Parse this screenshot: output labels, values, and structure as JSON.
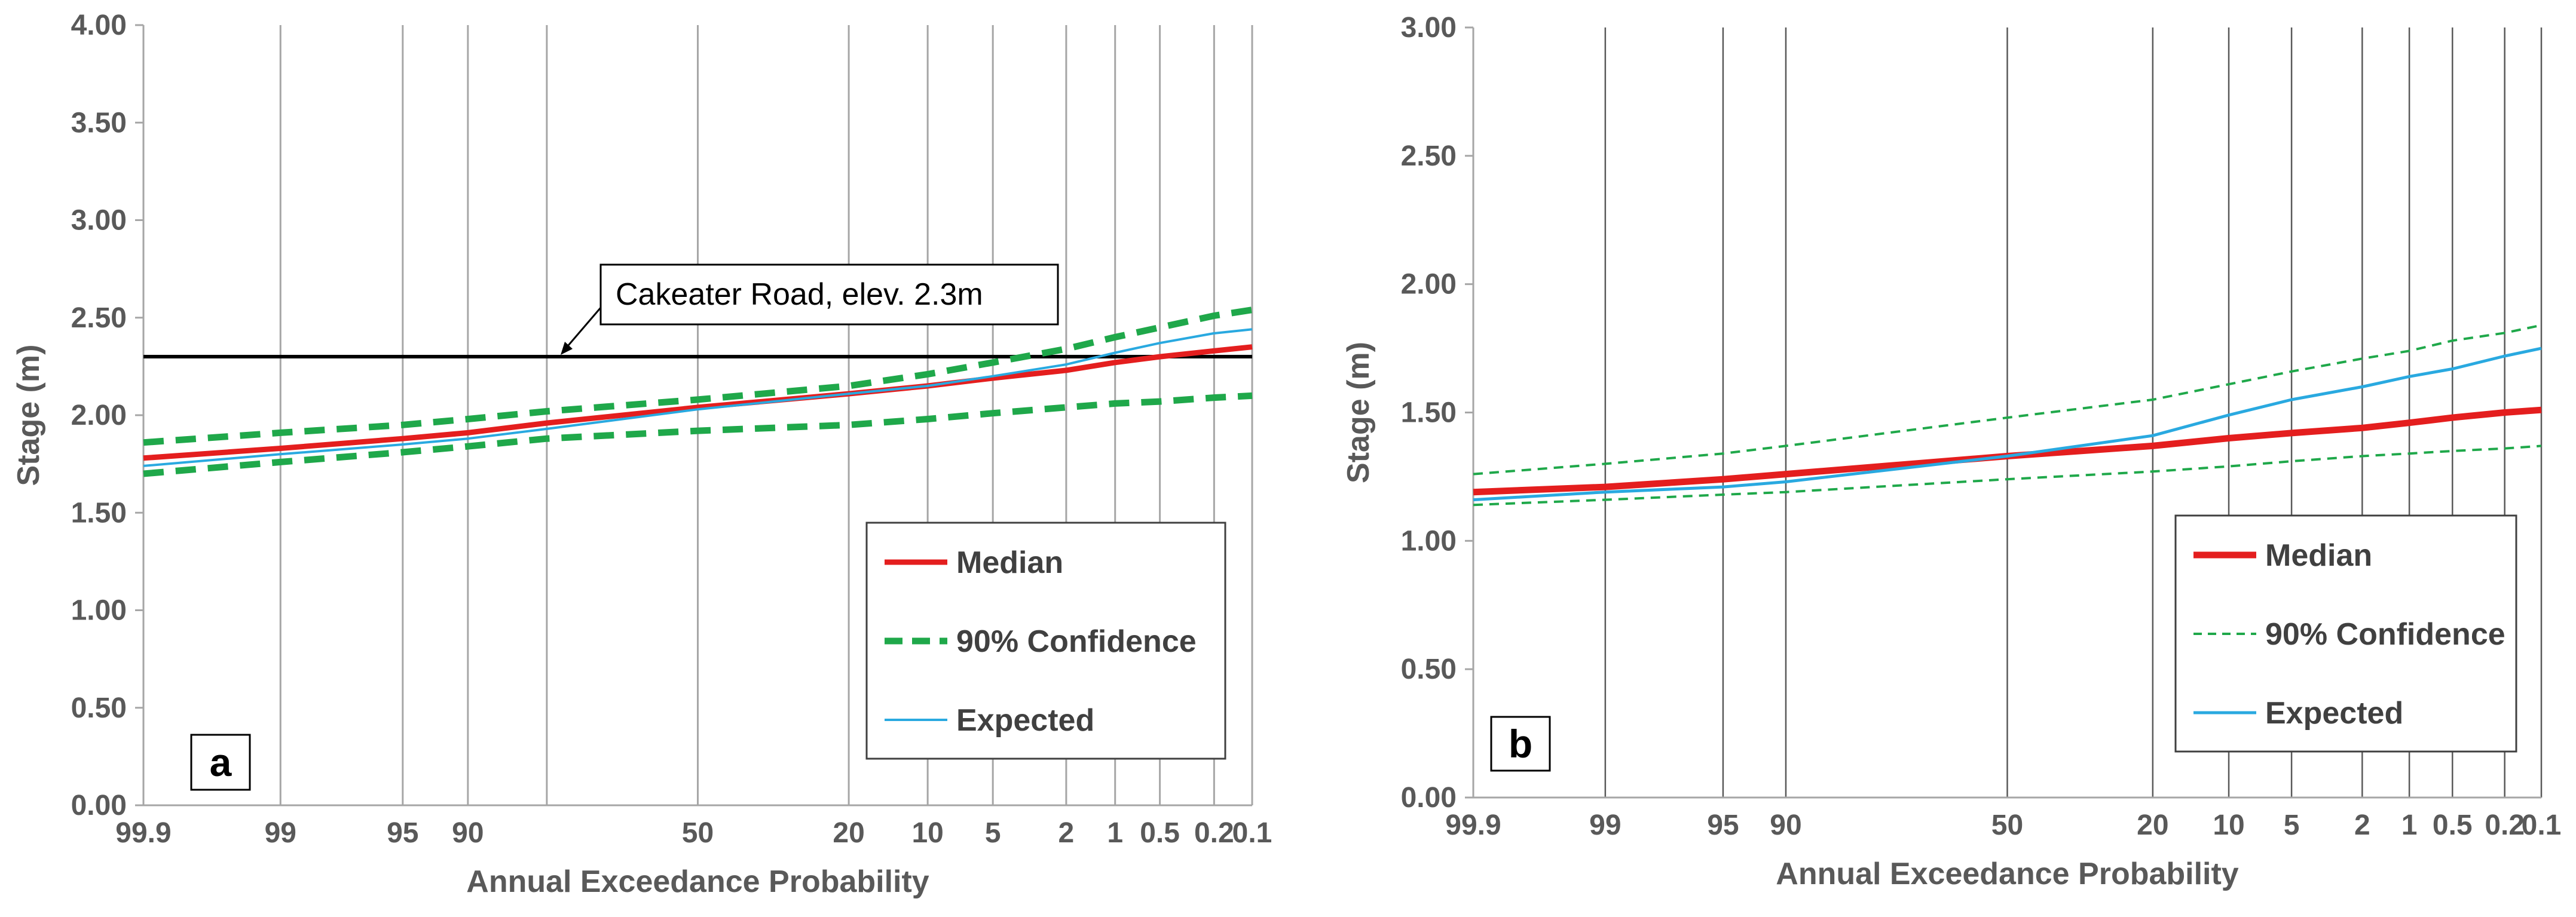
{
  "figure": {
    "colors": {
      "median": "#e41e1e",
      "confidence": "#1fa84a",
      "expected": "#29a9e0",
      "grid": "#7f7f7f",
      "threshold": "#000000"
    }
  },
  "chart_data": [
    {
      "type": "line",
      "panel_label": "a",
      "xlabel": "Annual Exceedance Probability",
      "ylabel": "Stage (m)",
      "ylim": [
        0,
        4
      ],
      "y_ticks": [
        "0.00",
        "0.50",
        "1.00",
        "1.50",
        "2.00",
        "2.50",
        "3.00",
        "3.50",
        "4.00"
      ],
      "x_ticks": [
        "99.9",
        "99",
        "95",
        "90",
        "50",
        "20",
        "10",
        "5",
        "2",
        "1",
        "0.5",
        "0.2",
        "0.1"
      ],
      "x_scale": "normal-probability (reversed)",
      "legend": [
        "Median",
        "90% Confidence",
        "Expected"
      ],
      "annotation": {
        "text": "Cakeater Road, elev. 2.3m",
        "y": 2.3
      },
      "series": [
        {
          "name": "Median",
          "x": [
            99.9,
            99,
            95,
            90,
            80,
            50,
            20,
            10,
            5,
            2,
            1,
            0.5,
            0.2,
            0.1
          ],
          "values": [
            1.78,
            1.83,
            1.88,
            1.91,
            1.96,
            2.04,
            2.11,
            2.15,
            2.19,
            2.23,
            2.27,
            2.3,
            2.33,
            2.35
          ]
        },
        {
          "name": "90% Confidence (upper)",
          "x": [
            99.9,
            99,
            95,
            90,
            80,
            50,
            20,
            10,
            5,
            2,
            1,
            0.5,
            0.2,
            0.1
          ],
          "values": [
            1.86,
            1.91,
            1.95,
            1.98,
            2.02,
            2.08,
            2.15,
            2.21,
            2.27,
            2.34,
            2.4,
            2.45,
            2.51,
            2.54
          ]
        },
        {
          "name": "90% Confidence (lower)",
          "x": [
            99.9,
            99,
            95,
            90,
            80,
            50,
            20,
            10,
            5,
            2,
            1,
            0.5,
            0.2,
            0.1
          ],
          "values": [
            1.7,
            1.76,
            1.81,
            1.84,
            1.88,
            1.92,
            1.95,
            1.98,
            2.01,
            2.04,
            2.06,
            2.07,
            2.09,
            2.1
          ]
        },
        {
          "name": "Expected",
          "x": [
            99.9,
            99,
            95,
            90,
            80,
            50,
            20,
            10,
            5,
            2,
            1,
            0.5,
            0.2,
            0.1
          ],
          "values": [
            1.74,
            1.8,
            1.85,
            1.88,
            1.93,
            2.03,
            2.11,
            2.15,
            2.2,
            2.26,
            2.32,
            2.37,
            2.42,
            2.44
          ]
        }
      ]
    },
    {
      "type": "line",
      "panel_label": "b",
      "xlabel": "Annual Exceedance Probability",
      "ylabel": "Stage (m)",
      "ylim": [
        0,
        3
      ],
      "y_ticks": [
        "0.00",
        "0.50",
        "1.00",
        "1.50",
        "2.00",
        "2.50",
        "3.00"
      ],
      "x_ticks": [
        "99.9",
        "99",
        "95",
        "90",
        "50",
        "20",
        "10",
        "5",
        "2",
        "1",
        "0.5",
        "0.2",
        "0.1"
      ],
      "x_scale": "normal-probability (reversed)",
      "legend": [
        "Median",
        "90% Confidence",
        "Expected"
      ],
      "series": [
        {
          "name": "Median",
          "x": [
            99.9,
            99,
            95,
            90,
            50,
            20,
            10,
            5,
            2,
            1,
            0.5,
            0.2,
            0.1
          ],
          "values": [
            1.19,
            1.21,
            1.24,
            1.26,
            1.33,
            1.37,
            1.4,
            1.42,
            1.44,
            1.46,
            1.48,
            1.5,
            1.51
          ]
        },
        {
          "name": "90% Confidence (upper)",
          "x": [
            99.9,
            99,
            95,
            90,
            50,
            20,
            10,
            5,
            2,
            1,
            0.5,
            0.2,
            0.1
          ],
          "values": [
            1.26,
            1.3,
            1.34,
            1.37,
            1.48,
            1.55,
            1.61,
            1.66,
            1.71,
            1.74,
            1.78,
            1.81,
            1.84
          ]
        },
        {
          "name": "90% Confidence (lower)",
          "x": [
            99.9,
            99,
            95,
            90,
            50,
            20,
            10,
            5,
            2,
            1,
            0.5,
            0.2,
            0.1
          ],
          "values": [
            1.14,
            1.16,
            1.18,
            1.19,
            1.24,
            1.27,
            1.29,
            1.31,
            1.33,
            1.34,
            1.35,
            1.36,
            1.37
          ]
        },
        {
          "name": "Expected",
          "x": [
            99.9,
            99,
            95,
            90,
            50,
            20,
            10,
            5,
            2,
            1,
            0.5,
            0.2,
            0.1
          ],
          "values": [
            1.16,
            1.19,
            1.21,
            1.23,
            1.33,
            1.41,
            1.49,
            1.55,
            1.6,
            1.64,
            1.67,
            1.72,
            1.75
          ]
        }
      ]
    }
  ]
}
